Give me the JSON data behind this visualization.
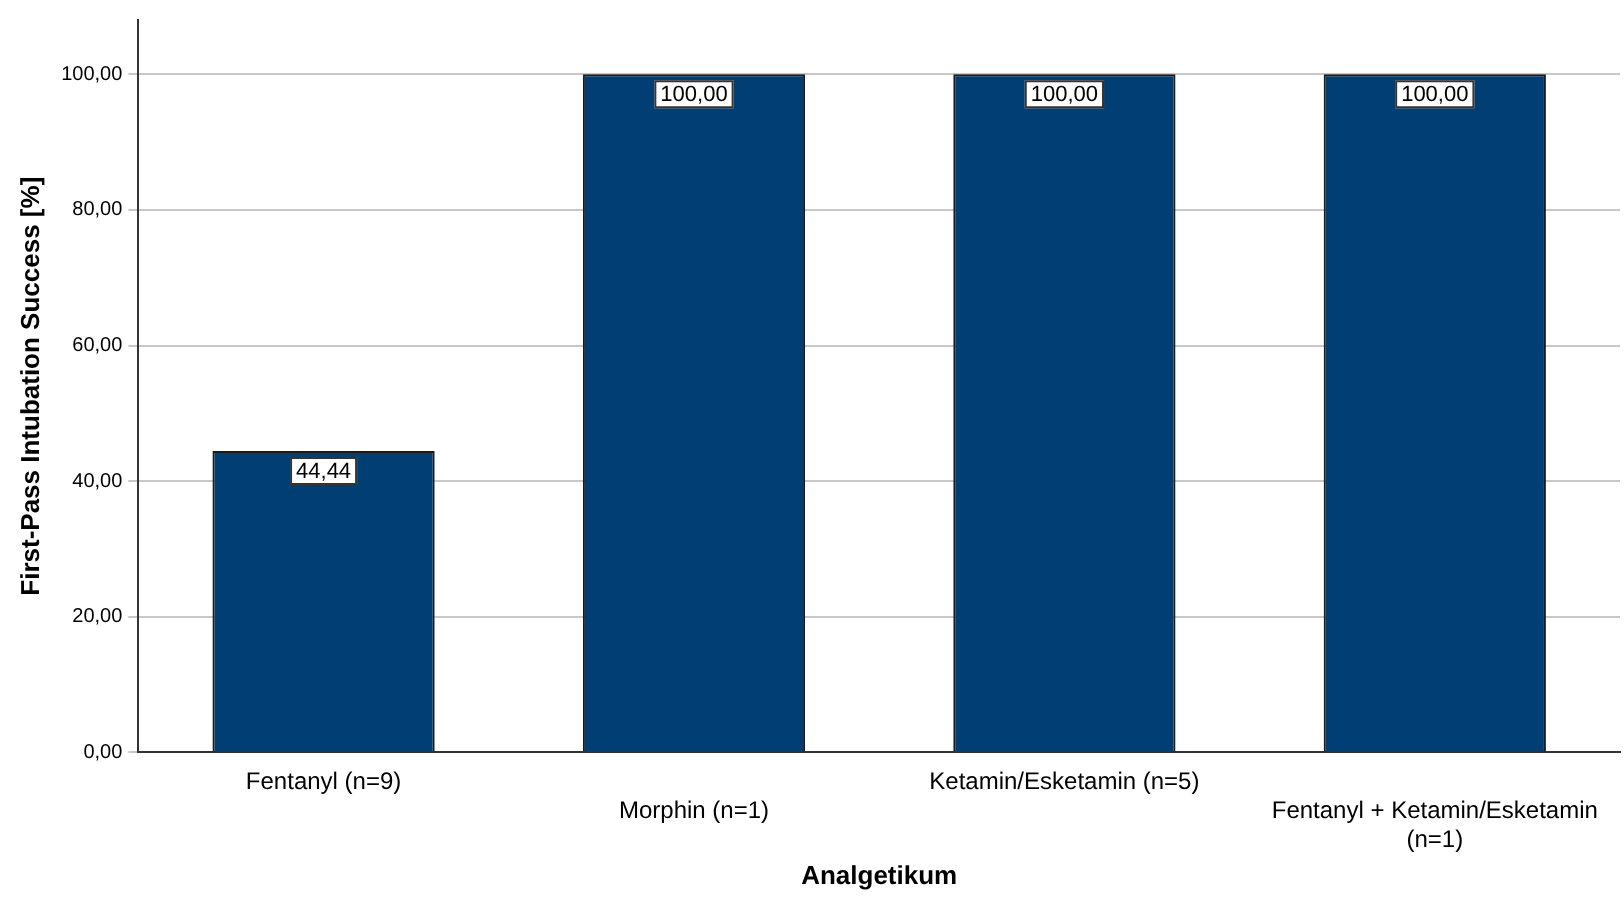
{
  "chart_data": {
    "type": "bar",
    "xlabel": "Analgetikum",
    "ylabel": "First-Pass Intubation Success [%]",
    "categories": [
      "Fentanyl (n=9)",
      "Morphin (n=1)",
      "Ketamin/Esketamin (n=5)",
      "Fentanyl + Ketamin/Esketamin (n=1)"
    ],
    "values": [
      44.44,
      100,
      100,
      100
    ],
    "color": "#003e74",
    "value_labels": [
      "44,44",
      "100,00",
      "100,00",
      "100,00"
    ],
    "ylim": [
      0,
      108
    ],
    "yticks": [
      {
        "value": 0,
        "label": "0,00"
      },
      {
        "value": 20,
        "label": "20,00"
      },
      {
        "value": 40,
        "label": "40,00"
      },
      {
        "value": 60,
        "label": "60,00"
      },
      {
        "value": 80,
        "label": "80,00"
      },
      {
        "value": 100,
        "label": "100,00"
      }
    ],
    "grid": "y",
    "legend": false
  }
}
